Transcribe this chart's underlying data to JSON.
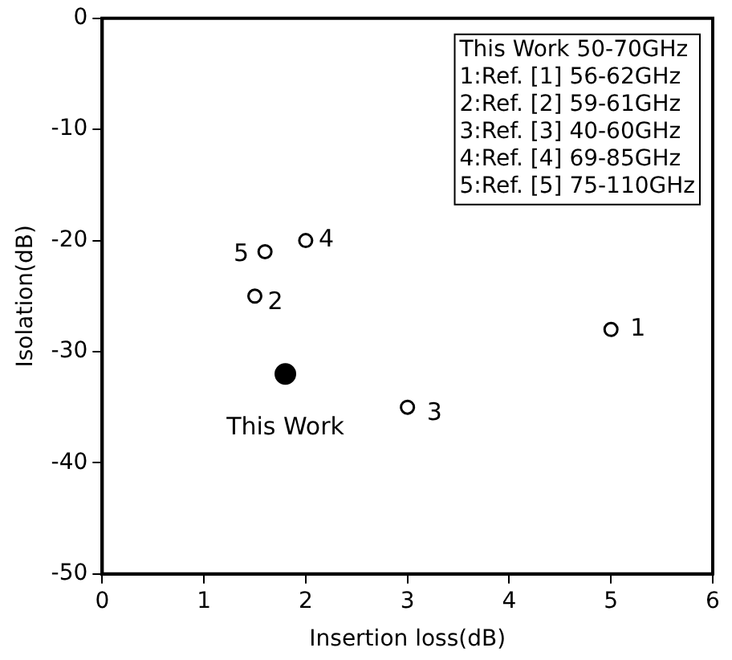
{
  "chart_data": {
    "type": "scatter",
    "xlabel": "Insertion loss(dB)",
    "ylabel": "Isolation(dB)",
    "xlim": [
      0,
      6
    ],
    "xticks": [
      0,
      1,
      2,
      3,
      4,
      5,
      6
    ],
    "ylim": [
      -50,
      0
    ],
    "yticks": [
      0,
      -10,
      -20,
      -30,
      -40,
      -50
    ],
    "grid": false,
    "legend": false,
    "marker": "circle",
    "series": [
      {
        "color": "#000000",
        "x": [
          1.8
        ],
        "values": [
          -32
        ]
      },
      {
        "color": "#000000",
        "x": [
          5,
          1.5,
          3,
          2,
          1.6
        ],
        "values": [
          -28,
          -25,
          -35,
          -20,
          -21
        ]
      }
    ],
    "annotations": [
      "This Work 50-70GHz",
      "1:Ref. [1] 56-62GHz",
      "2:Ref. [2] 59-61GHz",
      "3:Ref. [3] 40-60GHz",
      "4:Ref. [4] 69-85GHz",
      "5:Ref. [5] 75-110GHz",
      {
        "text": "This Work",
        "x": 1.8,
        "y": -32
      },
      {
        "text": "1",
        "x": 5,
        "y": -28
      },
      {
        "text": "2",
        "x": 1.5,
        "y": -25
      },
      {
        "text": "3",
        "x": 3,
        "y": -35
      },
      {
        "text": "4",
        "x": 2,
        "y": -20
      },
      {
        "text": "5",
        "x": 1.6,
        "y": -21
      }
    ]
  }
}
